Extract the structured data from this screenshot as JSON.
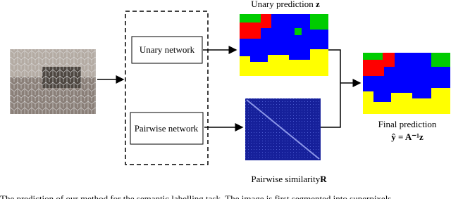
{
  "figure": {
    "unary_title": "Unary prediction",
    "unary_symbol": "z",
    "unary_network": "Unary network",
    "pairwise_network": "Pairwise network",
    "pairwise_title": "Pairwise similarity",
    "pairwise_symbol": "R",
    "final_title": "Final prediction",
    "final_formula": "ŷ = A⁻¹z",
    "caption": "The prediction of our method for the semantic labelling task. The image is first segmented into superpixels"
  }
}
